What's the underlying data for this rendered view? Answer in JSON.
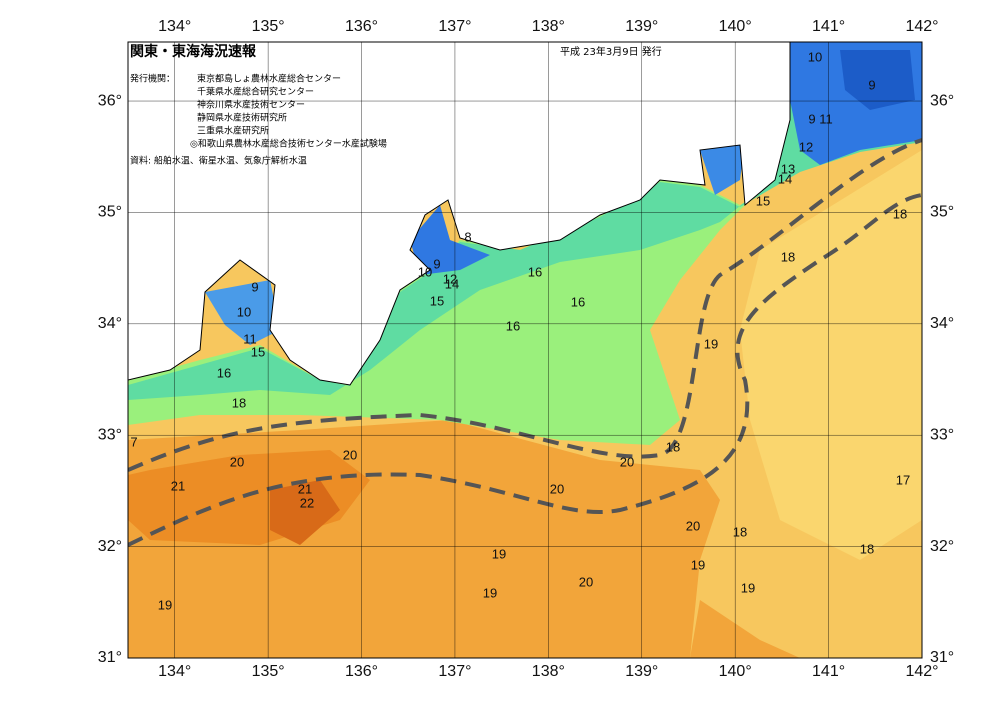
{
  "header": {
    "title": "関東・東海海況速報",
    "date": "平成 23年3月9日 発行",
    "issuer_label": "発行機関：",
    "issuers": [
      "東京都島しょ農林水産総合センター",
      "千葉県水産総合研究センター",
      "神奈川県水産技術センター",
      "静岡県水産技術研究所",
      "三重県水産研究所",
      "◎和歌山県農林水産総合技術センター水産試験場"
    ],
    "source": "資料: 船舶水温、衛星水温、気象庁解析水温"
  },
  "map": {
    "xlim": [
      133.5,
      142
    ],
    "ylim": [
      31,
      36.53
    ],
    "xticks": [
      {
        "value": 134,
        "label": "134°"
      },
      {
        "value": 135,
        "label": "135°"
      },
      {
        "value": 136,
        "label": "136°"
      },
      {
        "value": 137,
        "label": "137°"
      },
      {
        "value": 138,
        "label": "138°"
      },
      {
        "value": 139,
        "label": "139°"
      },
      {
        "value": 140,
        "label": "140°"
      },
      {
        "value": 141,
        "label": "141°"
      },
      {
        "value": 142,
        "label": "142°"
      }
    ],
    "yticks": [
      {
        "value": 31,
        "label": "31°"
      },
      {
        "value": 32,
        "label": "32°"
      },
      {
        "value": 33,
        "label": "33°"
      },
      {
        "value": 34,
        "label": "34°"
      },
      {
        "value": 35,
        "label": "35°"
      },
      {
        "value": 36,
        "label": "36°"
      }
    ],
    "contour_labels": [
      10,
      9,
      9,
      11,
      12,
      13,
      14,
      15,
      18,
      18,
      8,
      9,
      10,
      12,
      14,
      15,
      16,
      16,
      16,
      9,
      10,
      11,
      15,
      16,
      18,
      7,
      20,
      20,
      21,
      21,
      22,
      20,
      20,
      18,
      19,
      20,
      18,
      19,
      19,
      19,
      20,
      19,
      19,
      18,
      17
    ]
  }
}
